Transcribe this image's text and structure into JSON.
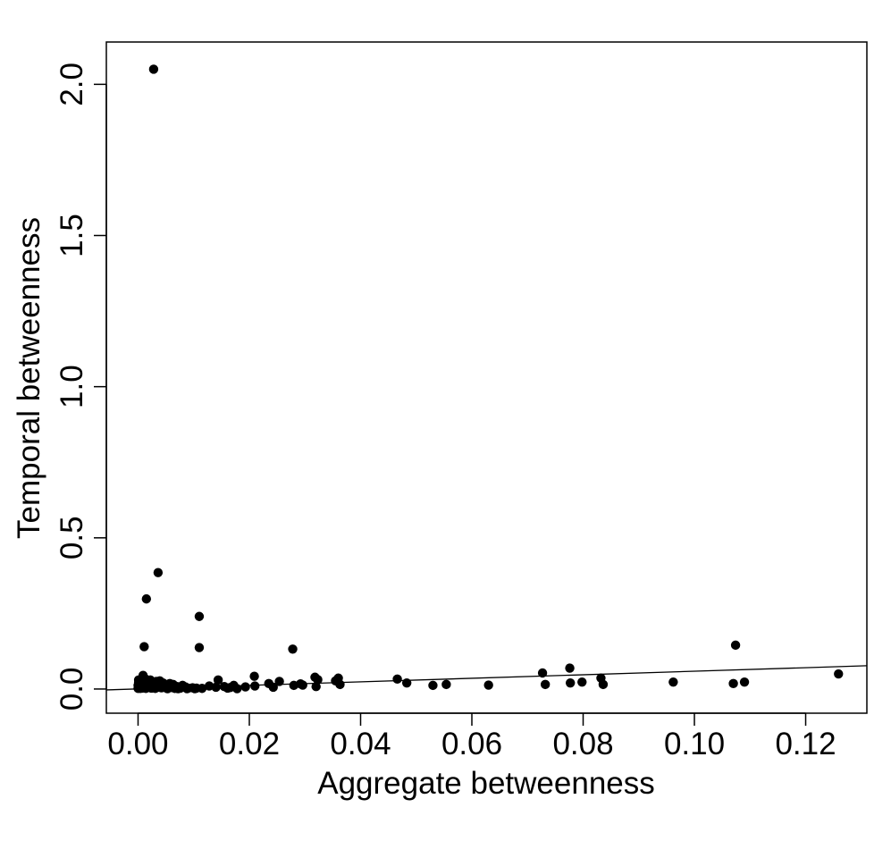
{
  "chart_data": {
    "type": "scatter",
    "title": "",
    "xlabel": "Aggregate betweenness",
    "ylabel": "Temporal betweenness",
    "xlim": [
      -0.0057,
      0.131
    ],
    "ylim": [
      -0.08,
      2.14
    ],
    "x_ticks": [
      "0.00",
      "0.02",
      "0.04",
      "0.06",
      "0.08",
      "0.10",
      "0.12"
    ],
    "x_tick_values": [
      0.0,
      0.02,
      0.04,
      0.06,
      0.08,
      0.1,
      0.12
    ],
    "y_ticks": [
      "0.0",
      "0.5",
      "1.0",
      "1.5",
      "2.0"
    ],
    "y_tick_values": [
      0.0,
      0.5,
      1.0,
      1.5,
      2.0
    ],
    "grid": false,
    "point_color": "#000000",
    "fit_line": {
      "x": [
        -0.0057,
        0.131
      ],
      "y": [
        -0.003,
        0.077
      ]
    },
    "points": [
      [
        0.0028,
        2.05
      ],
      [
        0.0036,
        0.385
      ],
      [
        0.0015,
        0.298
      ],
      [
        0.0011,
        0.14
      ],
      [
        0.011,
        0.24
      ],
      [
        0.011,
        0.137
      ],
      [
        0.0278,
        0.132
      ],
      [
        0.1074,
        0.145
      ],
      [
        0.1259,
        0.05
      ],
      [
        0.0776,
        0.069
      ],
      [
        0.0727,
        0.053
      ],
      [
        0.0832,
        0.036
      ],
      [
        0.0836,
        0.015
      ],
      [
        0.0798,
        0.023
      ],
      [
        0.0777,
        0.02
      ],
      [
        0.0732,
        0.015
      ],
      [
        0.0962,
        0.023
      ],
      [
        0.107,
        0.018
      ],
      [
        0.109,
        0.023
      ],
      [
        0.063,
        0.013
      ],
      [
        0.0554,
        0.015
      ],
      [
        0.053,
        0.012
      ],
      [
        0.0483,
        0.02
      ],
      [
        0.0466,
        0.033
      ],
      [
        0.036,
        0.036
      ],
      [
        0.0363,
        0.015
      ],
      [
        0.0355,
        0.027
      ],
      [
        0.0318,
        0.039
      ],
      [
        0.0323,
        0.031
      ],
      [
        0.032,
        0.008
      ],
      [
        0.0296,
        0.013
      ],
      [
        0.0292,
        0.017
      ],
      [
        0.028,
        0.012
      ],
      [
        0.0254,
        0.025
      ],
      [
        0.0243,
        0.006
      ],
      [
        0.0235,
        0.018
      ],
      [
        0.0209,
        0.042
      ],
      [
        0.021,
        0.01
      ],
      [
        0.0193,
        0.007
      ],
      [
        0.0172,
        0.012
      ],
      [
        0.0166,
        0.005
      ],
      [
        0.0161,
        0.003
      ],
      [
        0.0155,
        0.008
      ],
      [
        0.0144,
        0.03
      ],
      [
        0.014,
        0.006
      ],
      [
        0.0128,
        0.01
      ],
      [
        0.0115,
        0.002
      ],
      [
        0.0105,
        0.003
      ],
      [
        0.0098,
        0.004
      ],
      [
        0.009,
        0.003
      ],
      [
        0.0085,
        0.007
      ],
      [
        0.008,
        0.012
      ],
      [
        0.0076,
        0.003
      ],
      [
        0.007,
        0.008
      ],
      [
        0.0066,
        0.002
      ],
      [
        0.0063,
        0.015
      ],
      [
        0.006,
        0.005
      ],
      [
        0.0057,
        0.018
      ],
      [
        0.0054,
        0.009
      ],
      [
        0.0051,
        0.003
      ],
      [
        0.0048,
        0.012
      ],
      [
        0.0045,
        0.02
      ],
      [
        0.0042,
        0.004
      ],
      [
        0.0039,
        0.027
      ],
      [
        0.0036,
        0.006
      ],
      [
        0.0034,
        0.014
      ],
      [
        0.0031,
        0.002
      ],
      [
        0.0029,
        0.022
      ],
      [
        0.0027,
        0.009
      ],
      [
        0.0024,
        0.003
      ],
      [
        0.0022,
        0.03
      ],
      [
        0.002,
        0.012
      ],
      [
        0.0018,
        0.005
      ],
      [
        0.0016,
        0.019
      ],
      [
        0.0014,
        0.002
      ],
      [
        0.0012,
        0.035
      ],
      [
        0.001,
        0.008
      ],
      [
        0.0009,
        0.045
      ],
      [
        0.0008,
        0.016
      ],
      [
        0.0007,
        0.003
      ],
      [
        0.0006,
        0.025
      ],
      [
        0.0005,
        0.01
      ],
      [
        0.0004,
        0.002
      ],
      [
        0.0003,
        0.018
      ],
      [
        0.0002,
        0.006
      ],
      [
        0.0001,
        0.03
      ],
      [
        0.0,
        0.012
      ],
      [
        0.0,
        0.002
      ],
      [
        0.0001,
        0.021
      ],
      [
        0.0003,
        0.004
      ],
      [
        0.0015,
        0.028
      ],
      [
        0.0025,
        0.016
      ],
      [
        0.0033,
        0.025
      ],
      [
        0.0043,
        0.011
      ],
      [
        0.0053,
        0.001
      ],
      [
        0.0062,
        0.006
      ],
      [
        0.0072,
        0.001
      ],
      [
        0.0088,
        0.001
      ],
      [
        0.0102,
        0.001
      ],
      [
        0.0178,
        0.001
      ]
    ]
  }
}
